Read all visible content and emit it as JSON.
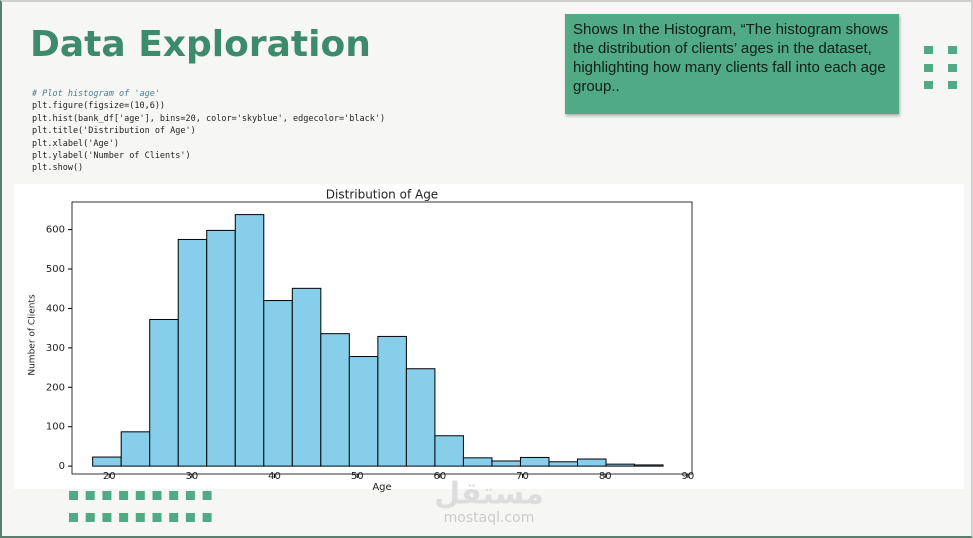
{
  "title": "Data Exploration",
  "code": [
    "# Plot histogram of 'age'",
    "plt.figure(figsize=(10,6))",
    "plt.hist(bank_df['age'], bins=20, color='skyblue', edgecolor='black')",
    "plt.title('Distribution of Age')",
    "plt.xlabel('Age')",
    "plt.ylabel('Number of Clients')",
    "plt.show()"
  ],
  "note": "Shows In the Histogram, “The histogram shows the distribution of clients’ ages in the dataset, highlighting how many clients fall into each age group..",
  "watermark": {
    "arabic": "مستقل",
    "latin": "mostaql.com"
  },
  "chart_data": {
    "type": "histogram",
    "title": "Distribution of Age",
    "x_label": "Age",
    "y_label": "Number of Clients",
    "bins": [
      18,
      21.45,
      24.9,
      28.35,
      31.8,
      35.25,
      38.7,
      42.15,
      45.6,
      49.05,
      52.5,
      55.95,
      59.4,
      62.85,
      66.3,
      69.75,
      73.2,
      76.65,
      80.1,
      83.55,
      87
    ],
    "values": [
      23,
      87,
      372,
      575,
      598,
      638,
      420,
      451,
      336,
      278,
      329,
      247,
      77,
      21,
      13,
      22,
      11,
      18,
      5,
      3
    ],
    "color": "#87ceeb",
    "edgecolor": "#000000",
    "xlim": [
      15.5,
      90.5
    ],
    "xticks": [
      20,
      30,
      40,
      50,
      60,
      70,
      80,
      90
    ],
    "ylim": [
      -20,
      670
    ],
    "yticks": [
      0,
      100,
      200,
      300,
      400,
      500,
      600
    ]
  }
}
